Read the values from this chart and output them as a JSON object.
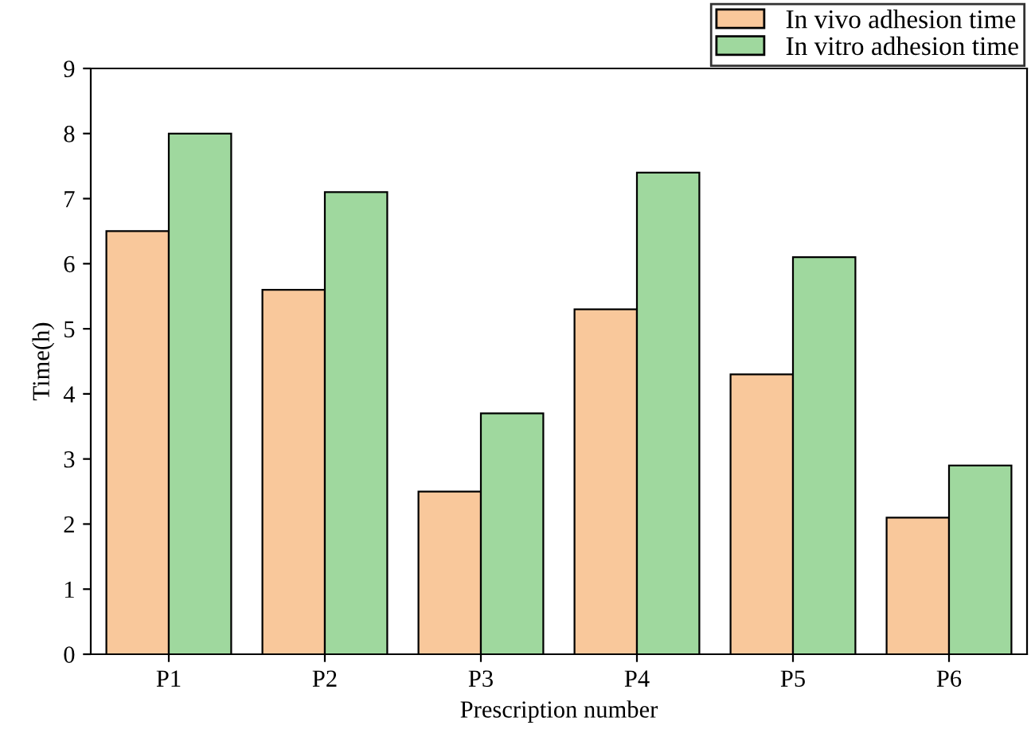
{
  "chart_data": {
    "type": "bar",
    "xlabel": "Prescription number",
    "ylabel": "Time(h)",
    "categories": [
      "P1",
      "P2",
      "P3",
      "P4",
      "P5",
      "P6"
    ],
    "series": [
      {
        "name": "In vivo adhesion time",
        "color": "#f9c89b",
        "values": [
          6.5,
          5.6,
          2.5,
          5.3,
          4.3,
          2.1
        ]
      },
      {
        "name": "In vitro adhesion time",
        "color": "#9fd89e",
        "values": [
          8.0,
          7.1,
          3.7,
          7.4,
          6.1,
          2.9
        ]
      }
    ],
    "ylim": [
      0,
      9
    ],
    "yticks": [
      0,
      1,
      2,
      3,
      4,
      5,
      6,
      7,
      8,
      9
    ],
    "grid": false,
    "legend": "top right"
  }
}
